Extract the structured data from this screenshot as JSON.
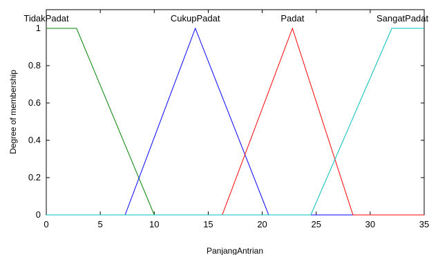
{
  "chart_data": {
    "type": "line",
    "xlabel": "PanjangAntrian",
    "ylabel": "Degree of membership",
    "xlim": [
      0,
      35
    ],
    "ylim": [
      0,
      1
    ],
    "x_ticks": [
      "0",
      "5",
      "10",
      "15",
      "20",
      "25",
      "30",
      "35"
    ],
    "y_ticks": [
      "0",
      "0.2",
      "0.4",
      "0.6",
      "0.8",
      "1"
    ],
    "grid": false,
    "series": [
      {
        "name": "TidakPadat",
        "color": "#008000",
        "x": [
          0,
          2.8,
          10,
          35
        ],
        "y": [
          1,
          1,
          0,
          0
        ]
      },
      {
        "name": "CukupPadat",
        "color": "#0000ff",
        "x": [
          0,
          7.3,
          13.8,
          20.6,
          35
        ],
        "y": [
          0,
          0,
          1,
          0,
          0
        ]
      },
      {
        "name": "Padat",
        "color": "#ff0000",
        "x": [
          0,
          16.3,
          22.8,
          28.4,
          35
        ],
        "y": [
          0,
          0,
          1,
          0,
          0
        ]
      },
      {
        "name": "SangatPadat",
        "color": "#00bfbf",
        "x": [
          0,
          24.5,
          32,
          35
        ],
        "y": [
          0,
          0,
          1,
          1
        ]
      }
    ]
  }
}
